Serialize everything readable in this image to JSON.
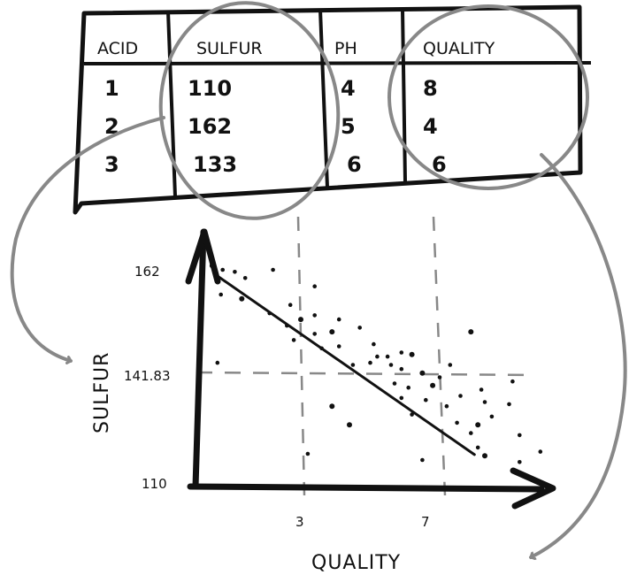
{
  "table": {
    "headers": [
      "ACID",
      "SULFUR",
      "PH",
      "QUALITY"
    ],
    "rows": [
      [
        "1",
        "110",
        "4",
        "8"
      ],
      [
        "2",
        "162",
        "5",
        "4"
      ],
      [
        "3",
        "133",
        "6",
        "6"
      ]
    ]
  },
  "chart_data": {
    "type": "scatter",
    "xlabel": "QUALITY",
    "ylabel": "SULFUR",
    "x_ticks": [
      "3",
      "7"
    ],
    "y_ticks": [
      "162",
      "141.83",
      "110"
    ],
    "grid": false,
    "trendline": "negative linear fit",
    "trend_start": {
      "x": 0.6,
      "y": 160.5
    },
    "trend_end": {
      "x": 8.0,
      "y": 117.3
    },
    "points": [
      {
        "x": 0.45,
        "y": 163.0
      },
      {
        "x": 0.75,
        "y": 162.0
      },
      {
        "x": 1.1,
        "y": 161.5
      },
      {
        "x": 1.4,
        "y": 160.0
      },
      {
        "x": 0.7,
        "y": 156.0
      },
      {
        "x": 1.3,
        "y": 155.0
      },
      {
        "x": 2.2,
        "y": 162.0
      },
      {
        "x": 3.4,
        "y": 158.0
      },
      {
        "x": 2.7,
        "y": 153.5
      },
      {
        "x": 2.1,
        "y": 151.5
      },
      {
        "x": 3.0,
        "y": 150.0
      },
      {
        "x": 3.4,
        "y": 151.0
      },
      {
        "x": 4.1,
        "y": 150.0
      },
      {
        "x": 2.6,
        "y": 148.5
      },
      {
        "x": 3.4,
        "y": 146.5
      },
      {
        "x": 3.9,
        "y": 147.0
      },
      {
        "x": 4.1,
        "y": 143.5
      },
      {
        "x": 2.8,
        "y": 145.0
      },
      {
        "x": 3.6,
        "y": 143.0
      },
      {
        "x": 4.7,
        "y": 148.0
      },
      {
        "x": 7.9,
        "y": 147.0
      },
      {
        "x": 5.1,
        "y": 144.0
      },
      {
        "x": 5.5,
        "y": 141.0
      },
      {
        "x": 5.2,
        "y": 141.0
      },
      {
        "x": 5.9,
        "y": 142.0
      },
      {
        "x": 6.2,
        "y": 141.5
      },
      {
        "x": 4.5,
        "y": 139.0
      },
      {
        "x": 5.0,
        "y": 139.5
      },
      {
        "x": 5.6,
        "y": 139.0
      },
      {
        "x": 5.9,
        "y": 138.0
      },
      {
        "x": 6.5,
        "y": 137.0
      },
      {
        "x": 7.0,
        "y": 136.0
      },
      {
        "x": 7.3,
        "y": 139.0
      },
      {
        "x": 5.7,
        "y": 134.5
      },
      {
        "x": 6.1,
        "y": 133.5
      },
      {
        "x": 6.8,
        "y": 134.0
      },
      {
        "x": 7.6,
        "y": 131.5
      },
      {
        "x": 8.2,
        "y": 133.0
      },
      {
        "x": 7.2,
        "y": 129.0
      },
      {
        "x": 7.5,
        "y": 125.0
      },
      {
        "x": 8.1,
        "y": 124.5
      },
      {
        "x": 8.5,
        "y": 126.5
      },
      {
        "x": 9.0,
        "y": 129.5
      },
      {
        "x": 9.1,
        "y": 135.0
      },
      {
        "x": 6.2,
        "y": 127.0
      },
      {
        "x": 4.4,
        "y": 124.5
      },
      {
        "x": 7.9,
        "y": 122.5
      },
      {
        "x": 8.1,
        "y": 119.0
      },
      {
        "x": 9.3,
        "y": 122.0
      },
      {
        "x": 9.9,
        "y": 118.0
      },
      {
        "x": 8.3,
        "y": 117.0
      },
      {
        "x": 9.3,
        "y": 115.5
      },
      {
        "x": 6.5,
        "y": 116.0
      },
      {
        "x": 3.2,
        "y": 117.5
      },
      {
        "x": 0.6,
        "y": 139.5
      },
      {
        "x": 3.9,
        "y": 129.0
      },
      {
        "x": 5.9,
        "y": 131.0
      },
      {
        "x": 6.6,
        "y": 130.5
      },
      {
        "x": 8.3,
        "y": 130.0
      }
    ]
  }
}
